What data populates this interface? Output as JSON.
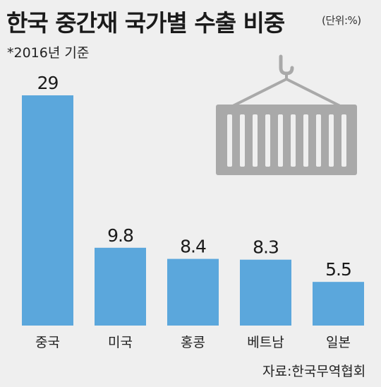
{
  "header": {
    "title": "한국 중간재 국가별 수출 비중",
    "unit": "(단위:%)",
    "note": "*2016년 기준"
  },
  "footer": {
    "source": "자료:한국무역협회"
  },
  "icon": "cargo-container-crane-icon",
  "colors": {
    "bar": "#5ba7dc",
    "container": "#a9a9a9",
    "background": "#efefef"
  },
  "chart_data": {
    "type": "bar",
    "categories": [
      "중국",
      "미국",
      "홍콩",
      "베트남",
      "일본"
    ],
    "values": [
      29,
      9.8,
      8.4,
      8.3,
      5.5
    ],
    "value_labels": [
      "29",
      "9.8",
      "8.4",
      "8.3",
      "5.5"
    ],
    "ylim": [
      0,
      29
    ],
    "grid": false,
    "legend": "none"
  }
}
